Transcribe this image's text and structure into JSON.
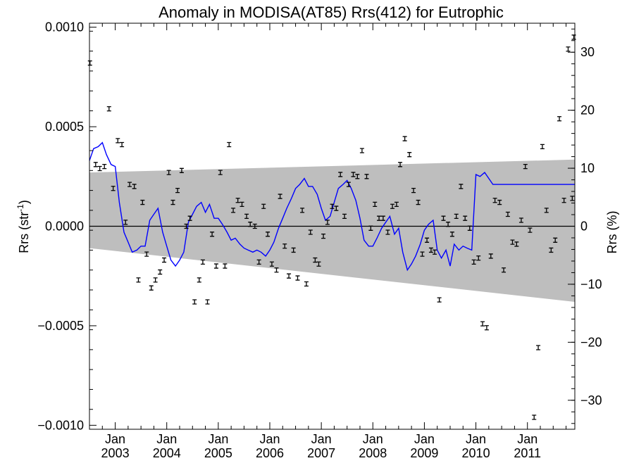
{
  "chart_data": {
    "type": "scatter",
    "title": "Anomaly in MODISA(AT85) Rrs(412) for Eutrophic",
    "ylabel_left_main": "Rrs (str",
    "ylabel_left_sup": "-1",
    "ylabel_left_close": ")",
    "ylabel_right": "Rrs (%)",
    "xlim": [
      2002.5,
      2011.92
    ],
    "ylim_left": [
      -0.00102,
      0.00102
    ],
    "ylim_right": [
      -35,
      35
    ],
    "x_tick_labels": [
      {
        "month": "Jan",
        "year": "2003",
        "x": 2003.0
      },
      {
        "month": "Jan",
        "year": "2004",
        "x": 2004.0
      },
      {
        "month": "Jan",
        "year": "2005",
        "x": 2005.0
      },
      {
        "month": "Jan",
        "year": "2006",
        "x": 2006.0
      },
      {
        "month": "Jan",
        "year": "2007",
        "x": 2007.0
      },
      {
        "month": "Jan",
        "year": "2008",
        "x": 2008.0
      },
      {
        "month": "Jan",
        "year": "2009",
        "x": 2009.0
      },
      {
        "month": "Jan",
        "year": "2010",
        "x": 2010.0
      },
      {
        "month": "Jan",
        "year": "2011",
        "x": 2011.0
      }
    ],
    "y_ticks_left": [
      {
        "value": 0.001,
        "label": "0.0010"
      },
      {
        "value": 0.0005,
        "label": "0.0005"
      },
      {
        "value": 0.0,
        "label": "0.0000"
      },
      {
        "value": -0.0005,
        "label": "−0.0005"
      },
      {
        "value": -0.001,
        "label": "−0.0010"
      }
    ],
    "y_ticks_right": [
      {
        "value": 30,
        "label": "30"
      },
      {
        "value": 20,
        "label": "20"
      },
      {
        "value": 10,
        "label": "10"
      },
      {
        "value": 0,
        "label": "0"
      },
      {
        "value": -10,
        "label": "−10"
      },
      {
        "value": -20,
        "label": "−20"
      },
      {
        "value": -30,
        "label": "−30"
      }
    ],
    "shaded_band": {
      "color": "#bebebe",
      "x": [
        2002.5,
        2011.92
      ],
      "upper": [
        0.00027,
        0.000335
      ],
      "lower": [
        -0.00011,
        -0.00038
      ]
    },
    "zero_line": 0.0,
    "smoothed_line": {
      "color": "#0000ff",
      "x": [
        2002.5,
        2002.58,
        2002.67,
        2002.75,
        2002.83,
        2002.92,
        2003.0,
        2003.08,
        2003.17,
        2003.25,
        2003.33,
        2003.42,
        2003.5,
        2003.58,
        2003.67,
        2003.75,
        2003.83,
        2003.92,
        2004.0,
        2004.08,
        2004.17,
        2004.25,
        2004.33,
        2004.42,
        2004.5,
        2004.58,
        2004.67,
        2004.75,
        2004.83,
        2004.92,
        2005.0,
        2005.08,
        2005.17,
        2005.25,
        2005.33,
        2005.42,
        2005.5,
        2005.58,
        2005.67,
        2005.75,
        2005.83,
        2005.92,
        2006.0,
        2006.08,
        2006.17,
        2006.25,
        2006.33,
        2006.42,
        2006.5,
        2006.58,
        2006.67,
        2006.75,
        2006.83,
        2006.92,
        2007.0,
        2007.08,
        2007.17,
        2007.25,
        2007.33,
        2007.42,
        2007.5,
        2007.58,
        2007.67,
        2007.75,
        2007.83,
        2007.92,
        2008.0,
        2008.08,
        2008.17,
        2008.25,
        2008.33,
        2008.42,
        2008.5,
        2008.58,
        2008.67,
        2008.75,
        2008.83,
        2008.92,
        2009.0,
        2009.08,
        2009.17,
        2009.25,
        2009.33,
        2009.42,
        2009.5,
        2009.58,
        2009.67,
        2009.75,
        2009.83,
        2009.92,
        2010.0,
        2010.08,
        2010.17,
        2010.25,
        2010.33,
        2010.42,
        2010.5,
        2010.58,
        2010.67,
        2010.75,
        2010.83,
        2010.92,
        2011.0,
        2011.08,
        2011.17,
        2011.25,
        2011.33,
        2011.42,
        2011.5,
        2011.58,
        2011.67,
        2011.75,
        2011.83,
        2011.92
      ],
      "y": [
        0.00033,
        0.00039,
        0.0004,
        0.00042,
        0.00036,
        0.00031,
        0.0003,
        0.00012,
        -3e-05,
        -8e-05,
        -0.00013,
        -0.00012,
        -0.0001,
        -0.0001,
        3e-05,
        6e-05,
        9e-05,
        -3e-05,
        -0.0001,
        -0.00017,
        -0.0002,
        -0.00017,
        -0.00013,
        2e-05,
        6e-05,
        0.0001,
        0.00012,
        7e-05,
        0.00011,
        4e-05,
        4e-05,
        1e-05,
        -3e-05,
        -7e-05,
        -6e-05,
        -9e-05,
        -0.00011,
        -0.00012,
        -0.00013,
        -0.00012,
        -0.00013,
        -0.00015,
        -0.00012,
        -8e-05,
        -1e-05,
        4e-05,
        9e-05,
        0.00014,
        0.00019,
        0.00021,
        0.00024,
        0.0002,
        0.0002,
        0.00016,
        9e-05,
        3e-05,
        5e-05,
        0.00012,
        0.00019,
        0.00021,
        0.00023,
        0.00019,
        0.00013,
        4e-05,
        -7e-05,
        -0.0001,
        -0.0001,
        -6e-05,
        -1e-05,
        2e-05,
        5e-05,
        -4e-05,
        -1e-05,
        -0.00013,
        -0.00022,
        -0.00019,
        -0.00015,
        -9e-05,
        -2e-05,
        1e-05,
        3e-05,
        -0.00012,
        -0.00016,
        -0.00012,
        -0.0002,
        -9e-05,
        -0.00012,
        -0.0001,
        -0.00011,
        -0.00012,
        0.00026,
        0.00025,
        0.00027,
        0.00024,
        0.00021,
        0.00021,
        0.00021,
        0.00021,
        0.00021,
        0.00021,
        0.00021,
        0.00021,
        0.00021,
        0.00021,
        0.00021,
        0.00021,
        0.00021,
        0.00021,
        0.00021,
        0.00021,
        0.00021,
        0.00021,
        0.00021,
        0.00021
      ]
    },
    "points": {
      "color": "#000000",
      "x": [
        2002.51,
        2002.62,
        2002.7,
        2002.79,
        2002.88,
        2002.96,
        2003.05,
        2003.13,
        2003.2,
        2003.28,
        2003.37,
        2003.45,
        2003.53,
        2003.61,
        2003.7,
        2003.78,
        2003.87,
        2003.95,
        2004.04,
        2004.12,
        2004.21,
        2004.29,
        2004.38,
        2004.45,
        2004.54,
        2004.63,
        2004.7,
        2004.79,
        2004.88,
        2004.96,
        2005.04,
        2005.13,
        2005.21,
        2005.29,
        2005.38,
        2005.46,
        2005.55,
        2005.62,
        2005.71,
        2005.79,
        2005.88,
        2005.96,
        2006.04,
        2006.13,
        2006.2,
        2006.29,
        2006.37,
        2006.46,
        2006.54,
        2006.63,
        2006.71,
        2006.79,
        2006.88,
        2006.95,
        2007.04,
        2007.12,
        2007.21,
        2007.29,
        2007.37,
        2007.45,
        2007.53,
        2007.62,
        2007.7,
        2007.79,
        2007.88,
        2007.96,
        2008.04,
        2008.12,
        2008.2,
        2008.29,
        2008.38,
        2008.46,
        2008.53,
        2008.62,
        2008.71,
        2008.79,
        2008.88,
        2008.96,
        2009.05,
        2009.13,
        2009.2,
        2009.29,
        2009.37,
        2009.46,
        2009.54,
        2009.62,
        2009.71,
        2009.79,
        2009.88,
        2009.96,
        2010.05,
        2010.13,
        2010.21,
        2010.29,
        2010.37,
        2010.46,
        2010.54,
        2010.62,
        2010.71,
        2010.79,
        2010.88,
        2010.96,
        2011.05,
        2011.13,
        2011.21,
        2011.29,
        2011.37,
        2011.46,
        2011.54,
        2011.62,
        2011.71,
        2011.79,
        2011.87,
        2011.9
      ],
      "y": [
        0.00082,
        0.00031,
        0.00029,
        0.0003,
        0.00059,
        0.00019,
        0.00043,
        0.00041,
        2e-05,
        0.00021,
        0.0002,
        -0.00027,
        0.00012,
        -0.00014,
        -0.00031,
        -0.00027,
        -0.00023,
        -0.00017,
        0.00027,
        0.00012,
        0.00018,
        0.00028,
        0.0,
        4e-05,
        -0.00038,
        -0.00027,
        -0.00018,
        -0.00038,
        -4e-05,
        -0.0002,
        0.00027,
        -0.0002,
        0.00041,
        8e-05,
        0.00013,
        0.00011,
        5e-05,
        1e-05,
        0.0,
        -0.00018,
        0.0001,
        -4e-05,
        -0.00019,
        -0.00022,
        0.00015,
        -0.0001,
        -0.00025,
        -0.00012,
        -0.00026,
        8e-05,
        -0.00029,
        -3e-05,
        -0.00017,
        -0.00019,
        -5e-05,
        2e-05,
        0.0001,
        9e-05,
        0.00026,
        5e-05,
        0.00021,
        0.00026,
        0.00025,
        0.00038,
        0.00025,
        -1e-05,
        0.00011,
        4e-05,
        4e-05,
        -3e-05,
        0.0001,
        0.00011,
        0.00031,
        0.00044,
        0.00036,
        0.00018,
        0.00012,
        -0.00014,
        -7e-05,
        -0.00012,
        -0.00013,
        -0.00037,
        4e-05,
        1e-05,
        -4e-05,
        5e-05,
        0.0002,
        4e-05,
        -1e-05,
        -0.00018,
        -0.00016,
        -0.00049,
        -0.00051,
        -0.00015,
        0.00013,
        0.00012,
        -0.00022,
        6e-05,
        -8e-05,
        -9e-05,
        3e-05,
        0.0003,
        -2e-05,
        -0.00096,
        -0.00061,
        0.0004,
        8e-05,
        -0.00012,
        -7e-05,
        0.00054,
        0.00013,
        0.00089,
        0.00014,
        0.00095
      ]
    }
  }
}
